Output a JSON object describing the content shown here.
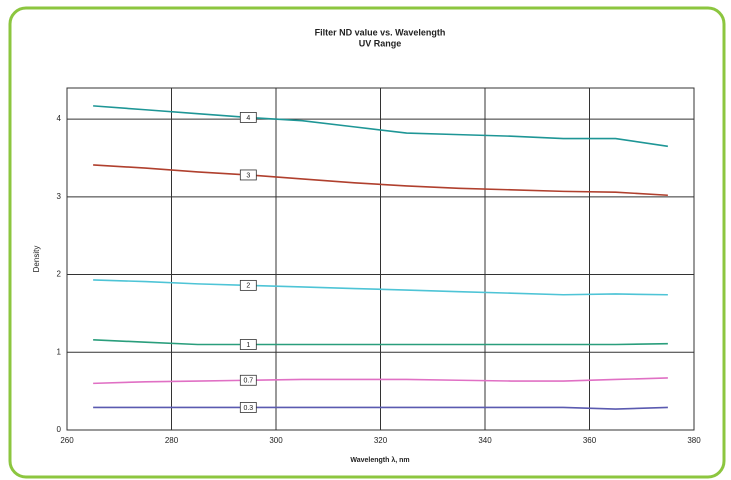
{
  "chart_data": {
    "type": "line",
    "title": "Filter ND value vs. Wavelength",
    "subtitle": "UV Range",
    "x_label": "Wavelength λ, nm",
    "y_label": "Density",
    "x": [
      265,
      275,
      285,
      295,
      305,
      315,
      325,
      335,
      345,
      355,
      365,
      375
    ],
    "series": [
      {
        "name": "4",
        "color": "#1e9696",
        "values": [
          4.17,
          4.12,
          4.07,
          4.02,
          3.98,
          3.9,
          3.82,
          3.8,
          3.78,
          3.75,
          3.75,
          3.65
        ]
      },
      {
        "name": "3",
        "color": "#b0402e",
        "values": [
          3.41,
          3.37,
          3.32,
          3.28,
          3.23,
          3.18,
          3.14,
          3.11,
          3.09,
          3.07,
          3.06,
          3.02
        ]
      },
      {
        "name": "2",
        "color": "#4ec4d6",
        "values": [
          1.93,
          1.91,
          1.88,
          1.86,
          1.84,
          1.82,
          1.8,
          1.78,
          1.76,
          1.74,
          1.75,
          1.74
        ]
      },
      {
        "name": "1",
        "color": "#2a9e7c",
        "values": [
          1.16,
          1.13,
          1.1,
          1.1,
          1.1,
          1.1,
          1.1,
          1.1,
          1.1,
          1.1,
          1.1,
          1.11
        ]
      },
      {
        "name": "0.7",
        "color": "#e070c4",
        "values": [
          0.6,
          0.62,
          0.63,
          0.64,
          0.65,
          0.65,
          0.65,
          0.64,
          0.63,
          0.63,
          0.65,
          0.67
        ]
      },
      {
        "name": "0.3",
        "color": "#5a5ab0",
        "values": [
          0.29,
          0.29,
          0.29,
          0.29,
          0.29,
          0.29,
          0.29,
          0.29,
          0.29,
          0.29,
          0.27,
          0.29
        ]
      }
    ],
    "xlim": [
      260,
      380
    ],
    "xticks": [
      260,
      280,
      300,
      320,
      340,
      360,
      380
    ],
    "ylim": [
      0,
      4.4
    ],
    "yticks": [
      0,
      1,
      2,
      3,
      4
    ],
    "grid": true,
    "frame_color": "#8cc63f"
  }
}
